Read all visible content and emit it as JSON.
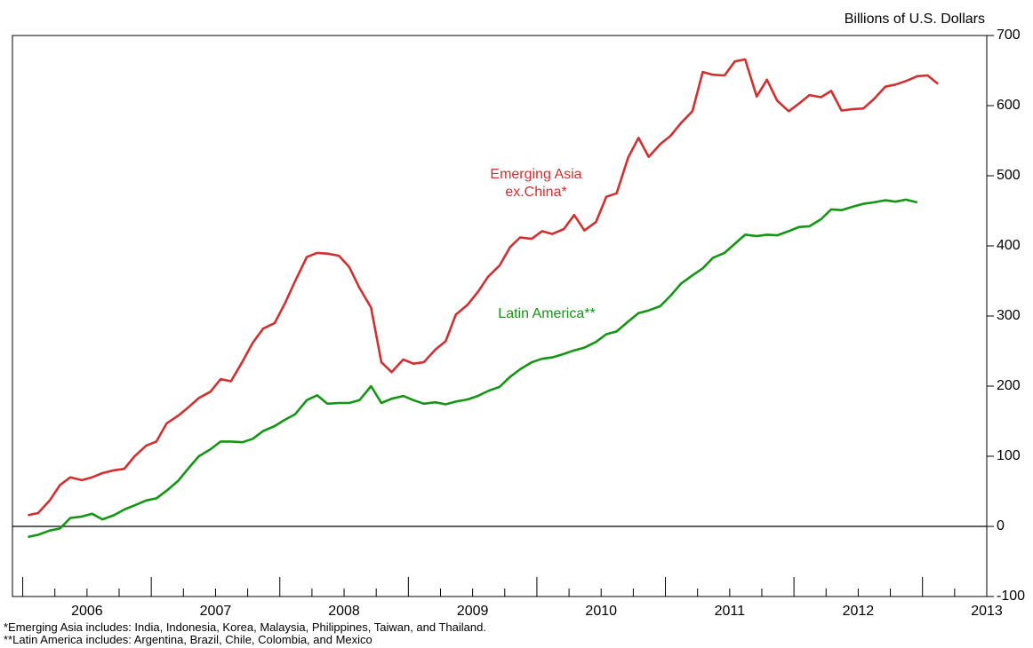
{
  "chart_data": {
    "type": "line",
    "unit_label": "Billions of U.S. Dollars",
    "notes": [
      "*Emerging Asia includes: India, Indonesia, Korea, Malaysia, Philippines, Taiwan, and Thailand.",
      "**Latin America includes: Argentina, Brazil, Chile, Colombia, and Mexico"
    ],
    "x": [
      2006.04,
      2006.12,
      2006.21,
      2006.29,
      2006.37,
      2006.46,
      2006.54,
      2006.62,
      2006.71,
      2006.79,
      2006.87,
      2006.96,
      2007.04,
      2007.12,
      2007.21,
      2007.29,
      2007.37,
      2007.46,
      2007.54,
      2007.62,
      2007.71,
      2007.79,
      2007.87,
      2007.96,
      2008.04,
      2008.12,
      2008.21,
      2008.29,
      2008.37,
      2008.46,
      2008.54,
      2008.62,
      2008.71,
      2008.79,
      2008.87,
      2008.96,
      2009.04,
      2009.12,
      2009.21,
      2009.29,
      2009.37,
      2009.46,
      2009.54,
      2009.62,
      2009.71,
      2009.79,
      2009.87,
      2009.96,
      2010.04,
      2010.12,
      2010.21,
      2010.29,
      2010.37,
      2010.46,
      2010.54,
      2010.62,
      2010.71,
      2010.79,
      2010.87,
      2010.96,
      2011.04,
      2011.12,
      2011.21,
      2011.29,
      2011.37,
      2011.46,
      2011.54,
      2011.62,
      2011.71,
      2011.79,
      2011.87,
      2011.96,
      2012.04,
      2012.12,
      2012.21,
      2012.29,
      2012.37,
      2012.46,
      2012.54,
      2012.62,
      2012.71,
      2012.79,
      2012.87,
      2012.96,
      2013.04,
      2013.12
    ],
    "series": [
      {
        "name": "Emerging Asia ex.China*",
        "color": "#d03030",
        "values": [
          16,
          19,
          37,
          59,
          70,
          66,
          70,
          76,
          80,
          82,
          100,
          115,
          121,
          147,
          158,
          170,
          183,
          192,
          210,
          207,
          235,
          262,
          282,
          290,
          318,
          350,
          384,
          390,
          389,
          386,
          370,
          340,
          312,
          234,
          220,
          238,
          232,
          234,
          252,
          264,
          302,
          316,
          334,
          356,
          372,
          398,
          412,
          410,
          421,
          417,
          424,
          444,
          422,
          434,
          470,
          475,
          526,
          554,
          527,
          545,
          557,
          575,
          592,
          648,
          644,
          643,
          663,
          666,
          613,
          637,
          607,
          592,
          603,
          615,
          612,
          621,
          593,
          595,
          596,
          609,
          627,
          630,
          635,
          642,
          643,
          631
        ]
      },
      {
        "name": "Latin America**",
        "color": "#139613",
        "values": [
          -15,
          -12,
          -6,
          -3,
          12,
          14,
          18,
          10,
          16,
          24,
          30,
          37,
          40,
          51,
          65,
          83,
          100,
          110,
          121,
          121,
          120,
          125,
          136,
          143,
          152,
          160,
          180,
          187,
          175,
          176,
          176,
          180,
          200,
          176,
          182,
          186,
          180,
          175,
          177,
          174,
          178,
          181,
          186,
          193,
          199,
          213,
          224,
          234,
          239,
          241,
          246,
          251,
          255,
          263,
          274,
          278,
          292,
          304,
          308,
          314,
          329,
          346,
          358,
          368,
          383,
          390,
          403,
          416,
          414,
          416,
          415,
          421,
          427,
          428,
          438,
          452,
          451,
          456,
          460,
          462,
          465,
          463,
          466,
          462,
          null,
          null
        ]
      }
    ],
    "xlim": [
      2005.92,
      2013.5
    ],
    "xticks": [
      {
        "value": 2006.5,
        "label": "2006"
      },
      {
        "value": 2007.5,
        "label": "2007"
      },
      {
        "value": 2008.5,
        "label": "2008"
      },
      {
        "value": 2009.5,
        "label": "2009"
      },
      {
        "value": 2010.5,
        "label": "2010"
      },
      {
        "value": 2011.5,
        "label": "2011"
      },
      {
        "value": 2012.5,
        "label": "2012"
      },
      {
        "value": 2013.5,
        "label": "2013"
      }
    ],
    "ylim": [
      -100,
      700
    ],
    "yticks": [
      -100,
      0,
      100,
      200,
      300,
      400,
      500,
      600,
      700
    ],
    "zero_line": true
  }
}
